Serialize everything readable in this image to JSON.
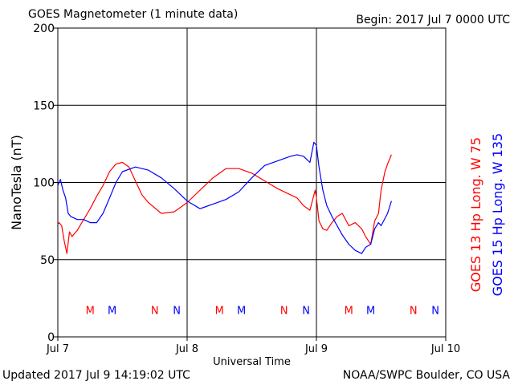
{
  "header": {
    "title": "GOES Magnetometer (1 minute data)",
    "begin": "Begin:  2017 Jul 7 0000 UTC"
  },
  "footer": {
    "updated": "Updated 2017 Jul  9 14:19:02 UTC",
    "credit": "NOAA/SWPC Boulder, CO USA"
  },
  "chart_data": {
    "type": "line",
    "title": "GOES Magnetometer (1 minute data)",
    "xlabel": "Universal Time",
    "ylabel": "NanoTesla (nT)",
    "x_unit": "days since 2017 Jul 7 0000 UTC",
    "xlim": [
      0,
      3
    ],
    "ylim": [
      0,
      200
    ],
    "x_ticks": [
      0,
      1,
      2,
      3
    ],
    "x_tick_labels": [
      "Jul 7",
      "Jul 8",
      "Jul 9",
      "Jul 10"
    ],
    "y_ticks": [
      0,
      50,
      100,
      150,
      200
    ],
    "y_tick_labels": [
      "0",
      "50",
      "100",
      "150",
      "200"
    ],
    "grid": true,
    "colors": {
      "goes13": "#ff0000",
      "goes15": "#0000ff",
      "grid": "#000000"
    },
    "series": [
      {
        "name": "GOES 13 Hp  Long. W 75",
        "color": "#ff0000",
        "x": [
          0.0,
          0.01,
          0.03,
          0.05,
          0.07,
          0.09,
          0.11,
          0.13,
          0.15,
          0.2,
          0.25,
          0.3,
          0.35,
          0.4,
          0.45,
          0.5,
          0.55,
          0.6,
          0.65,
          0.7,
          0.8,
          0.9,
          1.0,
          1.1,
          1.2,
          1.3,
          1.4,
          1.5,
          1.6,
          1.7,
          1.8,
          1.85,
          1.9,
          1.95,
          1.99,
          2.0,
          2.02,
          2.05,
          2.08,
          2.12,
          2.16,
          2.2,
          2.25,
          2.3,
          2.35,
          2.38,
          2.42,
          2.45,
          2.48,
          2.5,
          2.53,
          2.55,
          2.58
        ],
        "y": [
          73,
          74,
          72,
          62,
          54,
          68,
          65,
          67,
          69,
          76,
          83,
          91,
          98,
          107,
          112,
          113,
          110,
          101,
          92,
          87,
          80,
          81,
          87,
          95,
          103,
          109,
          109,
          106,
          101,
          96,
          92,
          90,
          85,
          82,
          95,
          90,
          75,
          70,
          69,
          74,
          78,
          80,
          72,
          74,
          70,
          65,
          60,
          75,
          80,
          95,
          107,
          112,
          118
        ]
      },
      {
        "name": "GOES 15 Hp  Long. W 135",
        "color": "#0000ff",
        "x": [
          0.0,
          0.02,
          0.04,
          0.06,
          0.08,
          0.1,
          0.15,
          0.2,
          0.25,
          0.3,
          0.35,
          0.4,
          0.45,
          0.5,
          0.6,
          0.7,
          0.8,
          0.9,
          1.0,
          1.1,
          1.2,
          1.3,
          1.4,
          1.5,
          1.6,
          1.7,
          1.8,
          1.85,
          1.9,
          1.95,
          1.98,
          2.0,
          2.02,
          2.05,
          2.08,
          2.12,
          2.16,
          2.2,
          2.25,
          2.3,
          2.35,
          2.38,
          2.42,
          2.45,
          2.48,
          2.5,
          2.55,
          2.58
        ],
        "y": [
          98,
          102,
          95,
          90,
          80,
          78,
          76,
          76,
          74,
          74,
          80,
          90,
          100,
          107,
          110,
          108,
          103,
          96,
          88,
          83,
          86,
          89,
          94,
          103,
          111,
          114,
          117,
          118,
          117,
          113,
          126,
          124,
          110,
          95,
          85,
          78,
          72,
          66,
          60,
          56,
          54,
          58,
          60,
          70,
          74,
          72,
          80,
          88
        ]
      }
    ],
    "markers": {
      "goes13": {
        "label_m": "M",
        "label_n": "N",
        "m_x": [
          0.25,
          1.25,
          2.25
        ],
        "n_x": [
          0.75,
          1.75,
          2.75
        ]
      },
      "goes15": {
        "label_m": "M",
        "label_n": "N",
        "m_x": [
          0.42,
          1.42,
          2.42
        ],
        "n_x": [
          0.92,
          1.92,
          2.92
        ]
      },
      "marker_y": 17
    }
  }
}
